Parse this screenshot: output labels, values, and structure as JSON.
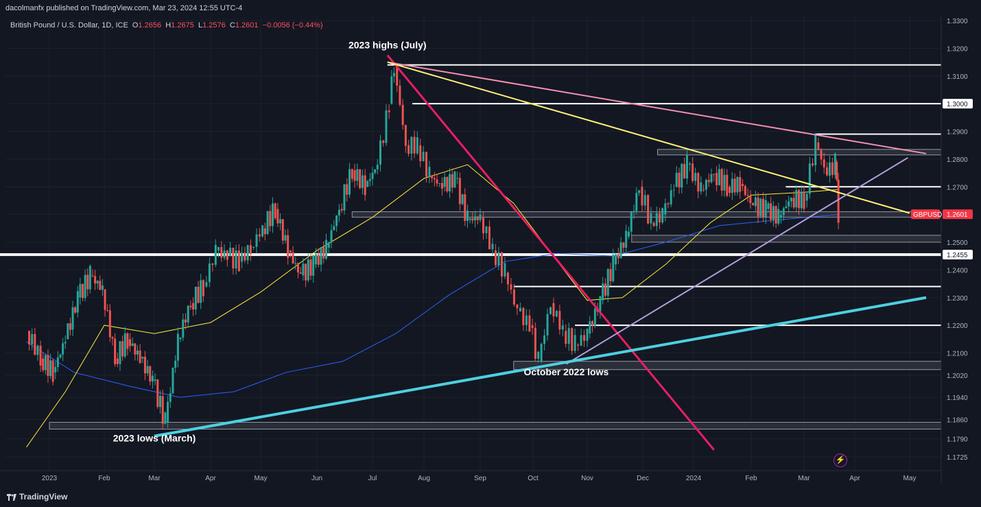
{
  "header": {
    "publisher_line": "dacolmanfx published on TradingView.com, Mar 23, 2024 12:55 UTC-4"
  },
  "symbol": {
    "name": "British Pound / U.S. Dollar, 1D, ICE",
    "open_label": "O",
    "open": "1.2656",
    "high_label": "H",
    "high": "1.2675",
    "low_label": "L",
    "low": "1.2576",
    "close_label": "C",
    "close": "1.2601",
    "change": "−0.0056 (−0.44%)",
    "ticker": "GBPUSD",
    "last_price": "1.2601"
  },
  "footer": {
    "brand": "TradingView"
  },
  "colors": {
    "background": "#131722",
    "up": "#26a69a",
    "down": "#ef5350",
    "ma_fast": "#ffeb3b",
    "ma_slow": "#2962ff",
    "trend_pink": "#e91e63",
    "trend_lightpink": "#f48fb1",
    "trend_yellow": "#fff176",
    "trend_purple": "#b39ddb",
    "trend_cyan": "#4dd0e1"
  },
  "chart_data": {
    "type": "candlestick",
    "title": "British Pound / U.S. Dollar, 1D, ICE",
    "y_axis": {
      "ylim": [
        1.17,
        1.33
      ],
      "ticks": [
        "1.3300",
        "1.3200",
        "1.3100",
        "1.3000",
        "1.2900",
        "1.2800",
        "1.2700",
        "1.2601",
        "1.2500",
        "1.2455",
        "1.2400",
        "1.2300",
        "1.2200",
        "1.2100",
        "1.2020",
        "1.1940",
        "1.1860",
        "1.1790",
        "1.1725"
      ],
      "highlighted_ticks": [
        "1.3000",
        "1.2455"
      ]
    },
    "x_axis": {
      "ticks": [
        "2023",
        "Feb",
        "Mar",
        "Apr",
        "May",
        "Jun",
        "Jul",
        "Aug",
        "Sep",
        "Oct",
        "Nov",
        "Dec",
        "2024",
        "Feb",
        "Mar",
        "Apr",
        "May"
      ]
    },
    "annotations": [
      {
        "text": "2023 highs (July)",
        "date": "2023-07-10",
        "price": 1.32
      },
      {
        "text": "October 2022 lows",
        "date": "2023-10-20",
        "price": 1.202
      },
      {
        "text": "2023 lows (March)",
        "date": "2023-03-01",
        "price": 1.178
      }
    ],
    "horizontal_levels": [
      {
        "price": 1.314,
        "from": "2023-07-10",
        "to": "2024-05-20"
      },
      {
        "price": 1.3,
        "from": "2023-07-25",
        "to": "2024-05-20"
      },
      {
        "price": 1.289,
        "from": "2024-03-08",
        "to": "2024-05-20"
      },
      {
        "price": 1.27,
        "from": "2024-02-20",
        "to": "2024-05-20"
      },
      {
        "price": 1.2455,
        "from": "2022-12-01",
        "to": "2024-05-20",
        "thick": true
      },
      {
        "price": 1.234,
        "from": "2023-09-20",
        "to": "2024-05-20"
      },
      {
        "price": 1.22,
        "from": "2023-10-25",
        "to": "2024-05-20"
      }
    ],
    "zones": [
      {
        "top": 1.283,
        "bottom": 1.282,
        "from": "2023-12-10",
        "to": "2024-05-20"
      },
      {
        "top": 1.2605,
        "bottom": 1.2595,
        "from": "2023-06-20",
        "to": "2024-05-20"
      },
      {
        "top": 1.252,
        "bottom": 1.2505,
        "from": "2023-11-25",
        "to": "2024-05-20"
      },
      {
        "top": 1.2065,
        "bottom": 1.2045,
        "from": "2023-09-20",
        "to": "2024-05-20"
      },
      {
        "top": 1.1845,
        "bottom": 1.183,
        "from": "2023-01-01",
        "to": "2024-05-20"
      }
    ],
    "trendlines": [
      {
        "color": "trend_pink",
        "from": [
          "2023-07-10",
          1.3175
        ],
        "to": [
          "2024-01-12",
          1.175
        ]
      },
      {
        "color": "trend_lightpink",
        "from": [
          "2023-07-10",
          1.315
        ],
        "to": [
          "2024-05-10",
          1.282
        ]
      },
      {
        "color": "trend_yellow",
        "from": [
          "2023-07-10",
          1.315
        ],
        "to": [
          "2024-05-01",
          1.2605
        ]
      },
      {
        "color": "trend_purple",
        "from": [
          "2023-10-20",
          1.206
        ],
        "to": [
          "2024-04-30",
          1.2805
        ]
      },
      {
        "color": "trend_cyan",
        "from": [
          "2023-03-01",
          1.18
        ],
        "to": [
          "2024-05-10",
          1.23
        ]
      }
    ],
    "series": [
      {
        "kind": "ohlc",
        "points": [
          {
            "date": "2022-12-19",
            "c": 1.218
          },
          {
            "date": "2022-12-27",
            "c": 1.208
          },
          {
            "date": "2023-01-03",
            "c": 1.203
          },
          {
            "date": "2023-01-10",
            "c": 1.215
          },
          {
            "date": "2023-01-17",
            "c": 1.23
          },
          {
            "date": "2023-01-24",
            "c": 1.238
          },
          {
            "date": "2023-01-31",
            "c": 1.233
          },
          {
            "date": "2023-02-07",
            "c": 1.208
          },
          {
            "date": "2023-02-14",
            "c": 1.215
          },
          {
            "date": "2023-02-21",
            "c": 1.208
          },
          {
            "date": "2023-02-28",
            "c": 1.2
          },
          {
            "date": "2023-03-07",
            "c": 1.185
          },
          {
            "date": "2023-03-14",
            "c": 1.215
          },
          {
            "date": "2023-03-21",
            "c": 1.228
          },
          {
            "date": "2023-03-28",
            "c": 1.234
          },
          {
            "date": "2023-04-04",
            "c": 1.247
          },
          {
            "date": "2023-04-11",
            "c": 1.245
          },
          {
            "date": "2023-04-18",
            "c": 1.243
          },
          {
            "date": "2023-04-25",
            "c": 1.248
          },
          {
            "date": "2023-05-02",
            "c": 1.255
          },
          {
            "date": "2023-05-09",
            "c": 1.262
          },
          {
            "date": "2023-05-16",
            "c": 1.247
          },
          {
            "date": "2023-05-23",
            "c": 1.238
          },
          {
            "date": "2023-05-30",
            "c": 1.242
          },
          {
            "date": "2023-06-06",
            "c": 1.248
          },
          {
            "date": "2023-06-13",
            "c": 1.262
          },
          {
            "date": "2023-06-20",
            "c": 1.276
          },
          {
            "date": "2023-06-27",
            "c": 1.27
          },
          {
            "date": "2023-07-04",
            "c": 1.278
          },
          {
            "date": "2023-07-11",
            "c": 1.3
          },
          {
            "date": "2023-07-14",
            "c": 1.314
          },
          {
            "date": "2023-07-21",
            "c": 1.285
          },
          {
            "date": "2023-07-28",
            "c": 1.285
          },
          {
            "date": "2023-08-04",
            "c": 1.274
          },
          {
            "date": "2023-08-11",
            "c": 1.27
          },
          {
            "date": "2023-08-18",
            "c": 1.273
          },
          {
            "date": "2023-08-25",
            "c": 1.258
          },
          {
            "date": "2023-09-01",
            "c": 1.259
          },
          {
            "date": "2023-09-08",
            "c": 1.247
          },
          {
            "date": "2023-09-15",
            "c": 1.239
          },
          {
            "date": "2023-09-22",
            "c": 1.225
          },
          {
            "date": "2023-09-29",
            "c": 1.22
          },
          {
            "date": "2023-10-04",
            "c": 1.207
          },
          {
            "date": "2023-10-11",
            "c": 1.228
          },
          {
            "date": "2023-10-18",
            "c": 1.218
          },
          {
            "date": "2023-10-25",
            "c": 1.213
          },
          {
            "date": "2023-11-01",
            "c": 1.217
          },
          {
            "date": "2023-11-08",
            "c": 1.229
          },
          {
            "date": "2023-11-15",
            "c": 1.242
          },
          {
            "date": "2023-11-22",
            "c": 1.252
          },
          {
            "date": "2023-11-29",
            "c": 1.27
          },
          {
            "date": "2023-12-06",
            "c": 1.257
          },
          {
            "date": "2023-12-13",
            "c": 1.26
          },
          {
            "date": "2023-12-20",
            "c": 1.27
          },
          {
            "date": "2023-12-28",
            "c": 1.278
          },
          {
            "date": "2024-01-05",
            "c": 1.269
          },
          {
            "date": "2024-01-12",
            "c": 1.275
          },
          {
            "date": "2024-01-19",
            "c": 1.27
          },
          {
            "date": "2024-01-26",
            "c": 1.271
          },
          {
            "date": "2024-02-02",
            "c": 1.263
          },
          {
            "date": "2024-02-09",
            "c": 1.262
          },
          {
            "date": "2024-02-16",
            "c": 1.259
          },
          {
            "date": "2024-02-23",
            "c": 1.266
          },
          {
            "date": "2024-03-01",
            "c": 1.265
          },
          {
            "date": "2024-03-08",
            "c": 1.286
          },
          {
            "date": "2024-03-15",
            "c": 1.274
          },
          {
            "date": "2024-03-20",
            "c": 1.279
          },
          {
            "date": "2024-03-22",
            "c": 1.2601
          }
        ]
      },
      {
        "kind": "ma_fast",
        "points": [
          {
            "date": "2022-12-19",
            "v": 1.176
          },
          {
            "date": "2023-01-10",
            "v": 1.196
          },
          {
            "date": "2023-02-01",
            "v": 1.22
          },
          {
            "date": "2023-03-01",
            "v": 1.217
          },
          {
            "date": "2023-04-01",
            "v": 1.221
          },
          {
            "date": "2023-05-01",
            "v": 1.232
          },
          {
            "date": "2023-06-01",
            "v": 1.247
          },
          {
            "date": "2023-07-01",
            "v": 1.259
          },
          {
            "date": "2023-08-01",
            "v": 1.273
          },
          {
            "date": "2023-08-25",
            "v": 1.278
          },
          {
            "date": "2023-09-20",
            "v": 1.264
          },
          {
            "date": "2023-10-15",
            "v": 1.243
          },
          {
            "date": "2023-11-01",
            "v": 1.229
          },
          {
            "date": "2023-11-20",
            "v": 1.23
          },
          {
            "date": "2023-12-15",
            "v": 1.242
          },
          {
            "date": "2024-01-10",
            "v": 1.257
          },
          {
            "date": "2024-02-01",
            "v": 1.267
          },
          {
            "date": "2024-03-01",
            "v": 1.268
          },
          {
            "date": "2024-03-22",
            "v": 1.269
          }
        ]
      },
      {
        "kind": "ma_slow",
        "points": [
          {
            "date": "2022-12-19",
            "v": 1.214
          },
          {
            "date": "2023-01-15",
            "v": 1.203
          },
          {
            "date": "2023-02-15",
            "v": 1.198
          },
          {
            "date": "2023-03-15",
            "v": 1.194
          },
          {
            "date": "2023-04-15",
            "v": 1.196
          },
          {
            "date": "2023-05-15",
            "v": 1.203
          },
          {
            "date": "2023-06-15",
            "v": 1.207
          },
          {
            "date": "2023-07-15",
            "v": 1.217
          },
          {
            "date": "2023-08-15",
            "v": 1.231
          },
          {
            "date": "2023-09-15",
            "v": 1.243
          },
          {
            "date": "2023-10-15",
            "v": 1.246
          },
          {
            "date": "2023-11-15",
            "v": 1.245
          },
          {
            "date": "2023-12-15",
            "v": 1.25
          },
          {
            "date": "2024-01-15",
            "v": 1.256
          },
          {
            "date": "2024-02-15",
            "v": 1.258
          },
          {
            "date": "2024-03-22",
            "v": 1.26
          }
        ]
      }
    ]
  }
}
